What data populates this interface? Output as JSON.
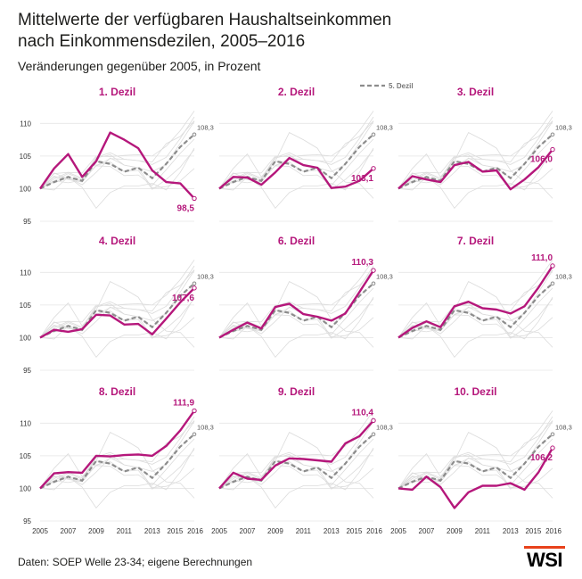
{
  "title_line1": "Mittelwerte der verfügbaren Haushaltseinkommen",
  "title_line2": "nach Einkommensdezilen, 2005–2016",
  "subtitle": "Veränderungen gegenüber 2005, in Prozent",
  "source": "Daten: SOEP Welle 23-34; eigene Berechnungen",
  "logo_text": "WSI",
  "colors": {
    "highlight": "#b5177b",
    "reference": "#8c8c8c",
    "background_lines": "#dcdcdc",
    "grid": "#e6e6e6",
    "title": "#b5177b",
    "logo_accent": "#e8421b"
  },
  "chart_data": {
    "type": "line",
    "x": [
      2005,
      2006,
      2007,
      2008,
      2009,
      2010,
      2011,
      2012,
      2013,
      2014,
      2015,
      2016
    ],
    "x_tick_labels": [
      "2005",
      "2007",
      "2009",
      "2011",
      "2013",
      "2015",
      "2016"
    ],
    "ylim": [
      95,
      111
    ],
    "y_ticks": [
      95,
      100,
      105,
      110
    ],
    "y_tick_labels": [
      "95",
      "100",
      "105",
      "110"
    ],
    "legend": {
      "label": "5. Dezil",
      "placement": "top-center"
    },
    "reference_series": {
      "name": "5. Dezil",
      "end_label": "108,3",
      "values": [
        100,
        101,
        101.8,
        101.2,
        104.2,
        103.8,
        102.6,
        103.2,
        101.6,
        103.8,
        106.4,
        108.3
      ]
    },
    "panels": [
      {
        "title": "1. Dezil",
        "end_label": "98,5",
        "values": [
          100,
          103.1,
          105.3,
          101.8,
          104.2,
          108.6,
          107.5,
          106.2,
          102.8,
          101.0,
          100.8,
          98.5
        ]
      },
      {
        "title": "2. Dezil",
        "end_label": "103,1",
        "values": [
          100,
          101.8,
          101.7,
          100.6,
          102.5,
          104.7,
          103.6,
          103.2,
          100.1,
          100.3,
          101.2,
          103.1
        ]
      },
      {
        "title": "3. Dezil",
        "end_label": "106,0",
        "values": [
          100,
          101.9,
          101.4,
          101.0,
          103.6,
          104.1,
          102.6,
          102.8,
          99.9,
          101.4,
          103.3,
          106.0
        ]
      },
      {
        "title": "4. Dezil",
        "end_label": "107,6",
        "values": [
          100,
          101.2,
          100.9,
          101.3,
          103.5,
          103.4,
          102.0,
          102.1,
          100.5,
          102.9,
          105.4,
          107.6
        ]
      },
      {
        "title": "6. Dezil",
        "end_label": "110,3",
        "values": [
          100,
          101.2,
          102.3,
          101.4,
          104.7,
          105.2,
          103.6,
          103.2,
          102.6,
          103.7,
          107.0,
          110.3
        ]
      },
      {
        "title": "7. Dezil",
        "end_label": "111,0",
        "values": [
          100,
          101.5,
          102.5,
          101.6,
          104.8,
          105.5,
          104.5,
          104.3,
          103.7,
          104.8,
          107.7,
          111.0
        ]
      },
      {
        "title": "8. Dezil",
        "end_label": "111,9",
        "values": [
          100,
          102.3,
          102.5,
          102.4,
          105.0,
          104.9,
          105.1,
          105.2,
          105.0,
          106.5,
          108.9,
          111.9
        ]
      },
      {
        "title": "9. Dezil",
        "end_label": "110,4",
        "values": [
          100,
          102.4,
          101.5,
          101.3,
          103.5,
          104.6,
          104.5,
          104.3,
          104.1,
          106.9,
          108.0,
          110.4
        ]
      },
      {
        "title": "10. Dezil",
        "end_label": "106,2",
        "values": [
          100,
          99.8,
          101.8,
          100.2,
          97.0,
          99.4,
          100.4,
          100.4,
          100.8,
          99.8,
          102.5,
          106.2
        ]
      }
    ]
  }
}
